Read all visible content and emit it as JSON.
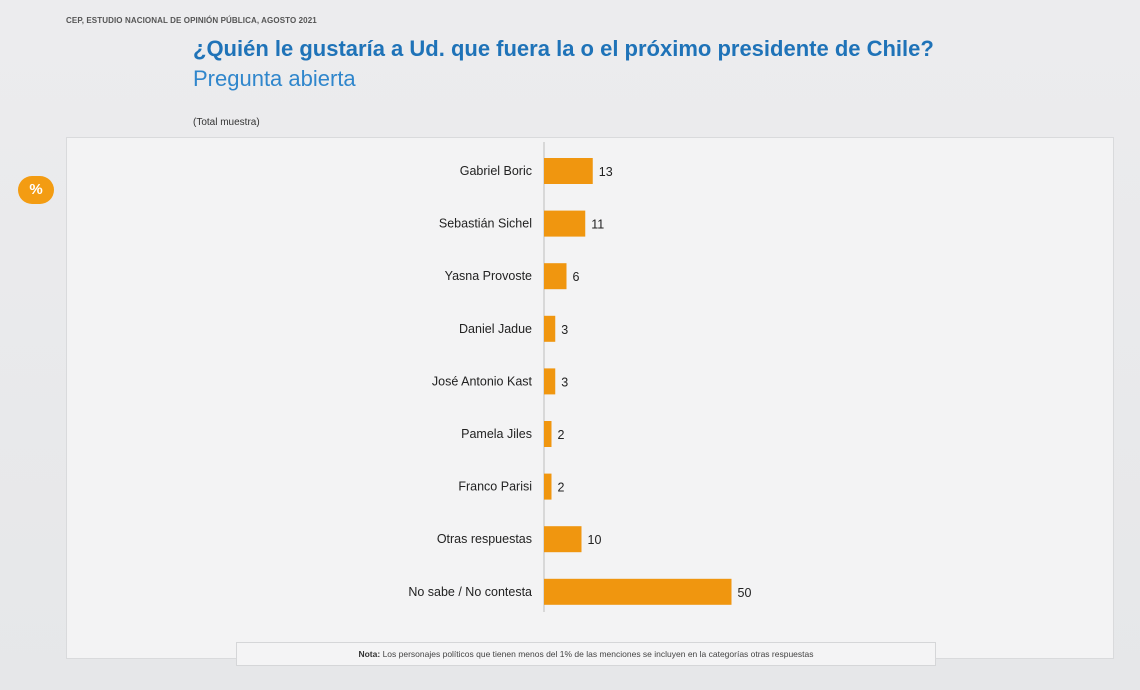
{
  "header": {
    "source": "CEP, ESTUDIO NACIONAL DE OPINIÓN PÚBLICA, AGOSTO 2021",
    "badge": "%"
  },
  "footer": {
    "note_label": "Nota:",
    "note_text": "Los personajes políticos que tienen menos del 1% de las menciones se incluyen en la categorías otras respuestas"
  },
  "chart_data": {
    "type": "bar",
    "orientation": "horizontal",
    "title": "¿Quién le gustaría a Ud. que fuera la o el próximo presidente de Chile?",
    "subtitle": "Pregunta abierta",
    "sample_label": "(Total muestra)",
    "categories": [
      "Gabriel Boric",
      "Sebastián Sichel",
      "Yasna Provoste",
      "Daniel Jadue",
      "José Antonio Kast",
      "Pamela Jiles",
      "Franco Parisi",
      "Otras respuestas",
      "No sabe / No contesta"
    ],
    "values": [
      13,
      11,
      6,
      3,
      3,
      2,
      2,
      10,
      50
    ],
    "bar_color": "#f0960f",
    "grid": false,
    "legend": "none"
  }
}
